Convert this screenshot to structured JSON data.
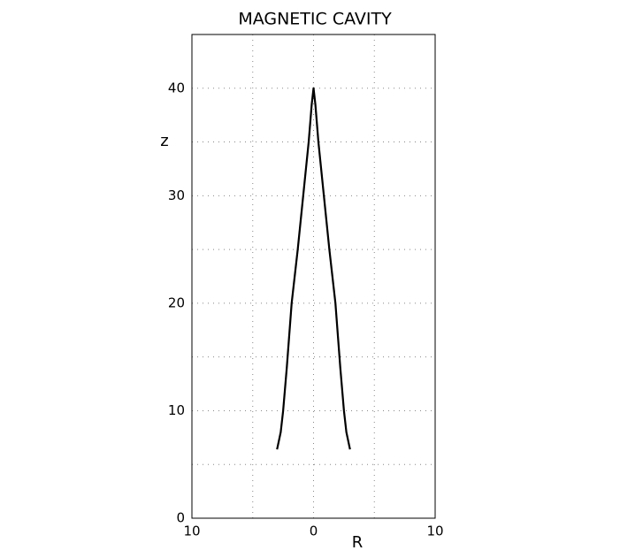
{
  "chart_data": {
    "type": "line",
    "title": "MAGNETIC CAVITY",
    "xlabel": "R",
    "ylabel": "z",
    "x": [
      -3,
      -2.7,
      -2.5,
      -2.2,
      -1.8,
      -1.3,
      -0.85,
      -0.4,
      -0.15,
      0,
      0.15,
      0.4,
      0.85,
      1.3,
      1.8,
      2.2,
      2.5,
      2.7,
      3
    ],
    "values": [
      6.4,
      8,
      10,
      14,
      20,
      25,
      30,
      35,
      38.5,
      40,
      38.5,
      35,
      30,
      25,
      20,
      14,
      10,
      8,
      6.4
    ],
    "color": "#000000",
    "xlim": [
      -10,
      10
    ],
    "xticks": [
      {
        "value": -10,
        "label": "10"
      },
      0,
      10
    ],
    "xminor": [
      -5,
      5
    ],
    "ylim": [
      0,
      45
    ],
    "yticks": [
      0,
      10,
      20,
      30,
      40
    ],
    "yminor": [
      5,
      15,
      25,
      35
    ],
    "grid": true
  }
}
